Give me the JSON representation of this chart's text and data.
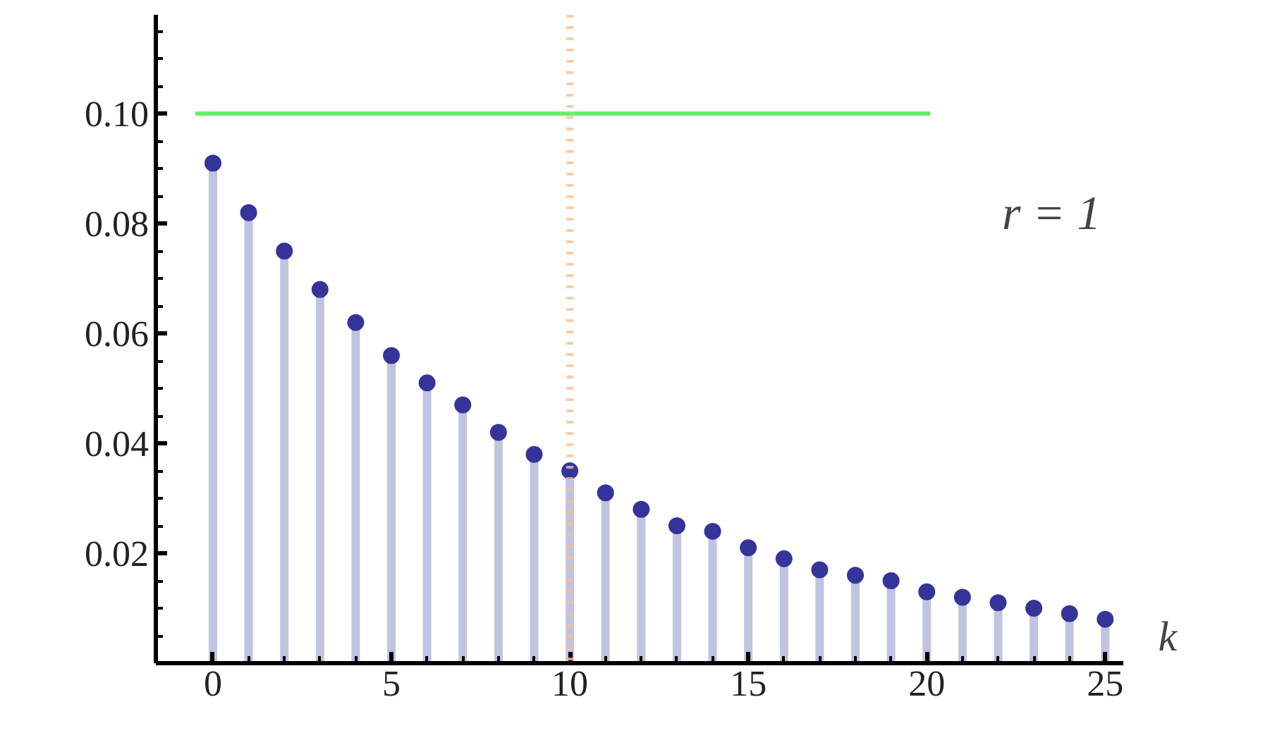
{
  "chart_data": {
    "type": "lollipop",
    "xlabel": "k",
    "x": [
      0,
      1,
      2,
      3,
      4,
      5,
      6,
      7,
      8,
      9,
      10,
      11,
      12,
      13,
      14,
      15,
      16,
      17,
      18,
      19,
      20,
      21,
      22,
      23,
      24,
      25
    ],
    "series": [
      {
        "color": "#34349a",
        "values": [
          0.091,
          0.082,
          0.075,
          0.068,
          0.062,
          0.056,
          0.051,
          0.047,
          0.042,
          0.038,
          0.035,
          0.031,
          0.028,
          0.025,
          0.024,
          0.021,
          0.019,
          0.017,
          0.016,
          0.015,
          0.013,
          0.012,
          0.011,
          0.01,
          0.009,
          0.008
        ]
      },
      {
        "type": "line",
        "marker": "none",
        "color": "#66ee66",
        "x": [
          -0.5,
          20.1
        ],
        "values": [
          0.1,
          0.1
        ]
      }
    ],
    "ref_lines": [
      {
        "axis": "x",
        "value": 10,
        "color": "#f8c090",
        "line_style": "dotted"
      }
    ],
    "annotations": [
      "r = 1"
    ],
    "xlim": [
      -1.6,
      25.5
    ],
    "ylim": [
      0,
      0.118
    ],
    "xticks": [
      0,
      {
        "value": 1,
        "label": null
      },
      {
        "value": 2,
        "label": null
      },
      {
        "value": 3,
        "label": null
      },
      {
        "value": 4,
        "label": null
      },
      5,
      {
        "value": 6,
        "label": null
      },
      {
        "value": 7,
        "label": null
      },
      {
        "value": 8,
        "label": null
      },
      {
        "value": 9,
        "label": null
      },
      10,
      {
        "value": 11,
        "label": null
      },
      {
        "value": 12,
        "label": null
      },
      {
        "value": 13,
        "label": null
      },
      {
        "value": 14,
        "label": null
      },
      15,
      {
        "value": 16,
        "label": null
      },
      {
        "value": 17,
        "label": null
      },
      {
        "value": 18,
        "label": null
      },
      {
        "value": 19,
        "label": null
      },
      20,
      {
        "value": 21,
        "label": null
      },
      {
        "value": 22,
        "label": null
      },
      {
        "value": 23,
        "label": null
      },
      {
        "value": 24,
        "label": null
      },
      25
    ],
    "yticks": [
      {
        "value": 0.005,
        "label": null
      },
      {
        "value": 0.01,
        "label": null
      },
      {
        "value": 0.015,
        "label": null
      },
      0.02,
      {
        "value": 0.025,
        "label": null
      },
      {
        "value": 0.03,
        "label": null
      },
      {
        "value": 0.035,
        "label": null
      },
      0.04,
      {
        "value": 0.045,
        "label": null
      },
      {
        "value": 0.05,
        "label": null
      },
      {
        "value": 0.055,
        "label": null
      },
      0.06,
      {
        "value": 0.065,
        "label": null
      },
      {
        "value": 0.07,
        "label": null
      },
      {
        "value": 0.075,
        "label": null
      },
      0.08,
      {
        "value": 0.085,
        "label": null
      },
      {
        "value": 0.09,
        "label": null
      },
      {
        "value": 0.095,
        "label": null
      },
      {
        "value": 0.1,
        "label": "0.10"
      },
      {
        "value": 0.105,
        "label": null
      },
      {
        "value": 0.11,
        "label": null
      },
      {
        "value": 0.115,
        "label": null
      }
    ],
    "grid": false,
    "marker": "circle"
  }
}
